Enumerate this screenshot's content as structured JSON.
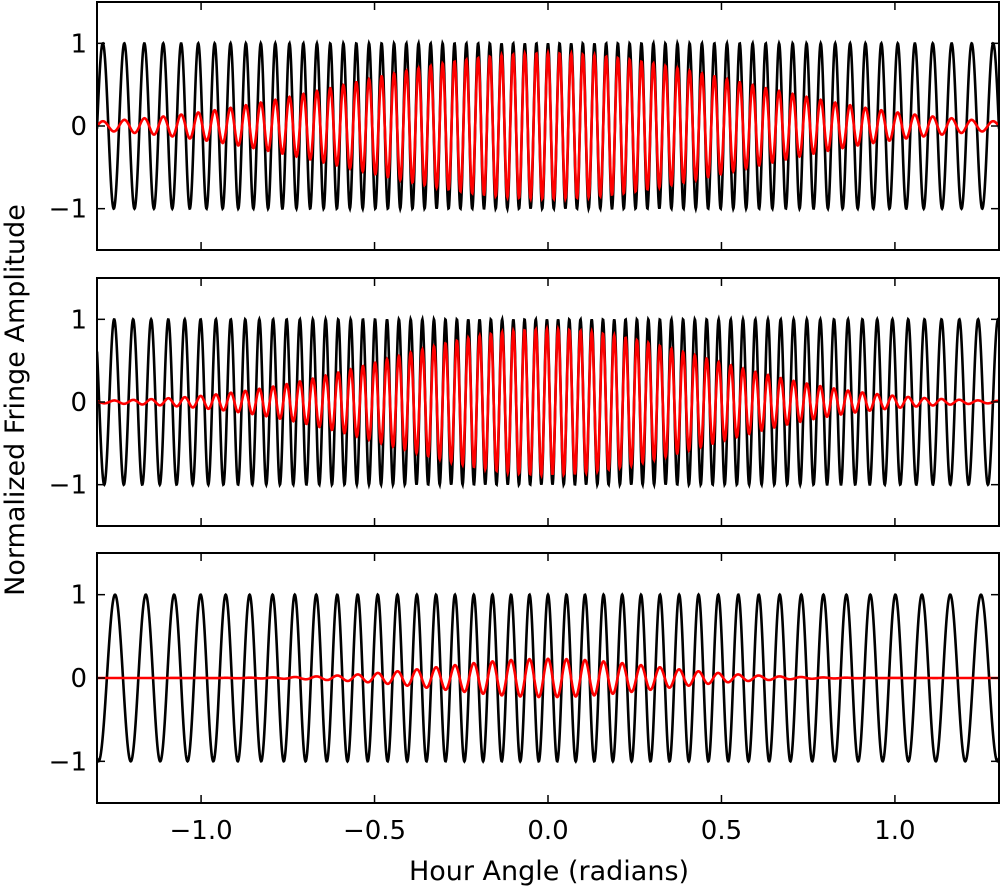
{
  "chart_data": {
    "type": "line",
    "xlabel": "Hour Angle (radians)",
    "ylabel": "Normalized Fringe Amplitude",
    "xlim": [
      -1.3,
      1.3
    ],
    "ylim": [
      -1.5,
      1.5
    ],
    "x_ticks": [
      -1.0,
      -0.5,
      0.0,
      0.5,
      1.0
    ],
    "x_tick_labels": [
      "−1.0",
      "−0.5",
      "0.0",
      "0.5",
      "1.0"
    ],
    "y_ticks": [
      -1,
      0,
      1
    ],
    "y_tick_labels": [
      "−1",
      "0",
      "1"
    ],
    "colors": {
      "fringe": "#000000",
      "visibility_weighted": "#ff0000"
    },
    "panels": [
      {
        "fringe": {
          "amplitude": 1.0,
          "frequency_peak_rad": 188,
          "width": 1.25,
          "phase": 0.0
        },
        "visibility_weighted": {
          "peak_amplitude": 0.88,
          "envelope_sigma": 0.55
        }
      },
      {
        "fringe": {
          "amplitude": 1.0,
          "frequency_peak_rad": 195,
          "width": 1.3,
          "phase": 0.6
        },
        "visibility_weighted": {
          "peak_amplitude": 0.88,
          "envelope_sigma": 0.45
        }
      },
      {
        "fringe": {
          "amplitude": 1.0,
          "frequency_peak_rad": 118,
          "width": 1.3,
          "phase": 0.0
        },
        "visibility_weighted": {
          "peak_amplitude": 0.23,
          "envelope_sigma": 0.3
        }
      }
    ]
  }
}
